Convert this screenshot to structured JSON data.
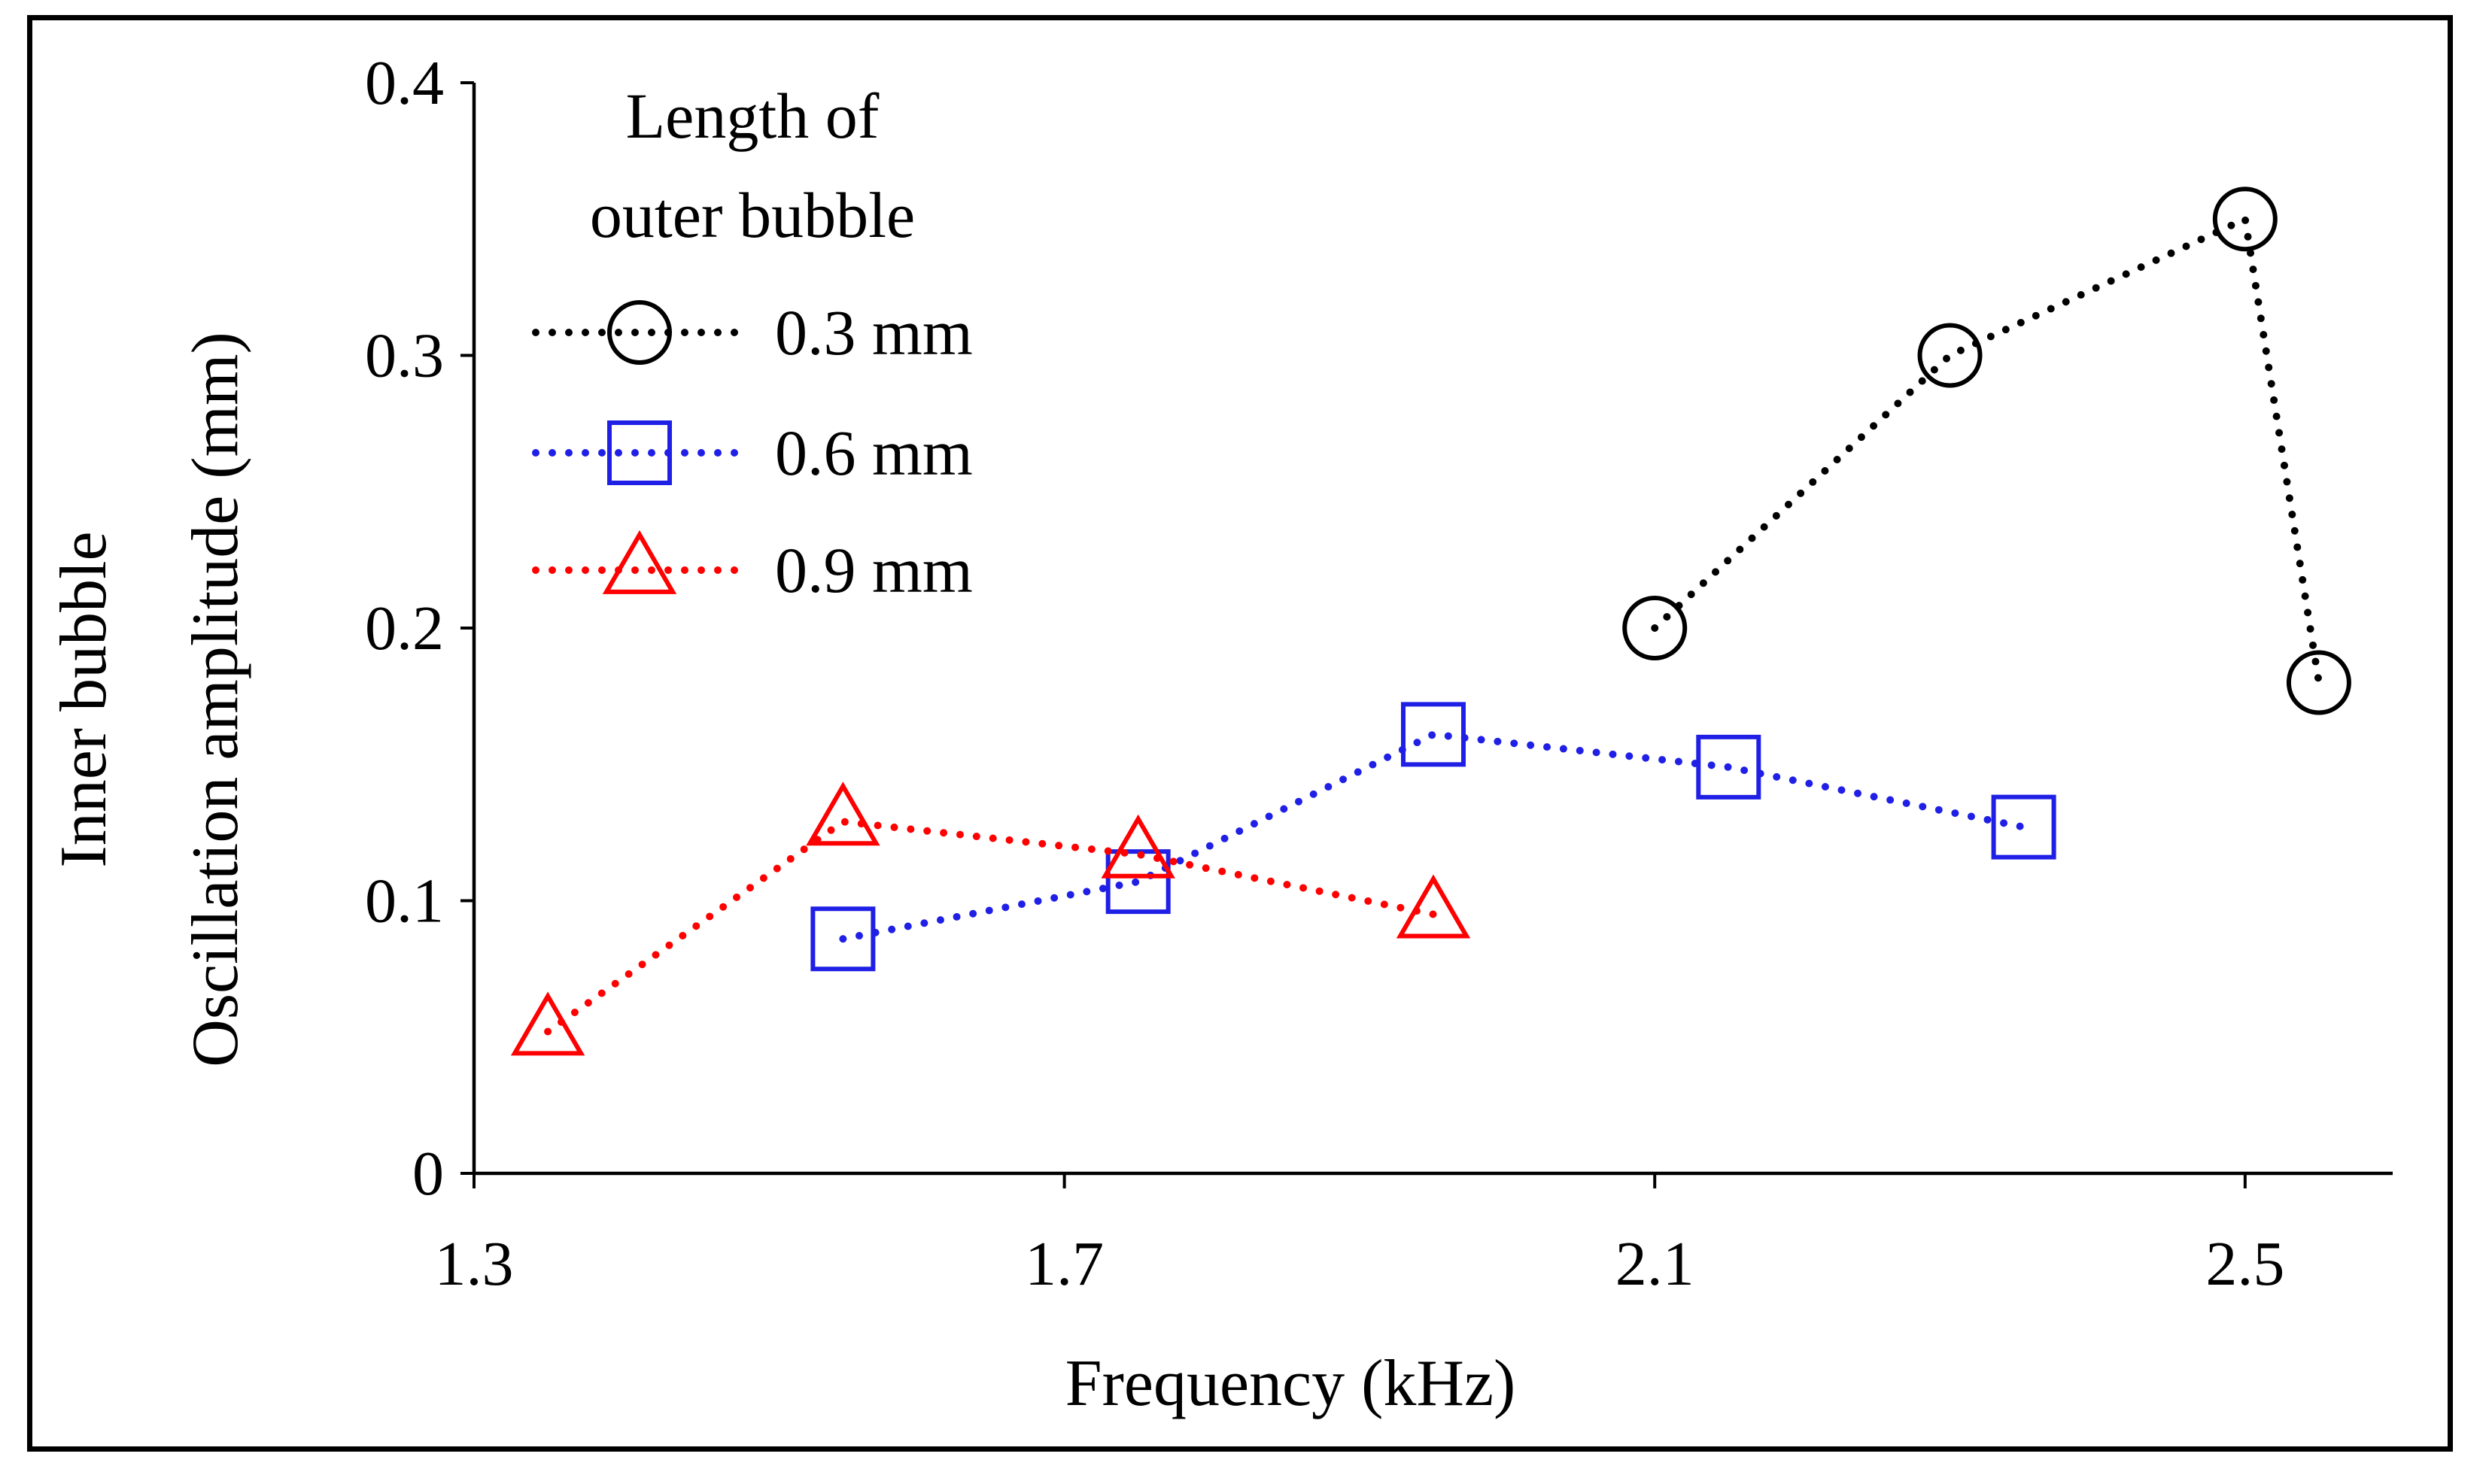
{
  "chart_data": {
    "type": "line",
    "title": "",
    "xlabel": "Frequency (kHz)",
    "ylabel_lines": [
      "Inner bubble",
      "Oscillation amplitude (mm)"
    ],
    "xlim": [
      1.3,
      2.6
    ],
    "ylim": [
      0,
      0.4
    ],
    "xticks": [
      1.3,
      1.7,
      2.1,
      2.5
    ],
    "yticks": [
      0,
      0.1,
      0.2,
      0.3,
      0.4
    ],
    "xtick_labels": [
      "1.3",
      "1.7",
      "2.1",
      "2.5"
    ],
    "ytick_labels": [
      "0",
      "0.1",
      "0.2",
      "0.3",
      "0.4"
    ],
    "grid": false,
    "legend_title_lines": [
      "Length  of",
      "outer bubble"
    ],
    "legend_position": "top-left",
    "series": [
      {
        "name": "0.3 mm",
        "marker": "circle",
        "color": "#000000",
        "x": [
          2.1,
          2.3,
          2.5,
          2.55
        ],
        "y": [
          0.2,
          0.3,
          0.35,
          0.18
        ]
      },
      {
        "name": "0.6 mm",
        "marker": "square",
        "color": "#1f1fe6",
        "x": [
          1.55,
          1.75,
          1.95,
          2.15,
          2.35
        ],
        "y": [
          0.086,
          0.107,
          0.161,
          0.149,
          0.127
        ]
      },
      {
        "name": "0.9 mm",
        "marker": "triangle",
        "color": "#ff0000",
        "x": [
          1.35,
          1.55,
          1.75,
          1.95
        ],
        "y": [
          0.052,
          0.129,
          0.117,
          0.095
        ]
      }
    ]
  }
}
